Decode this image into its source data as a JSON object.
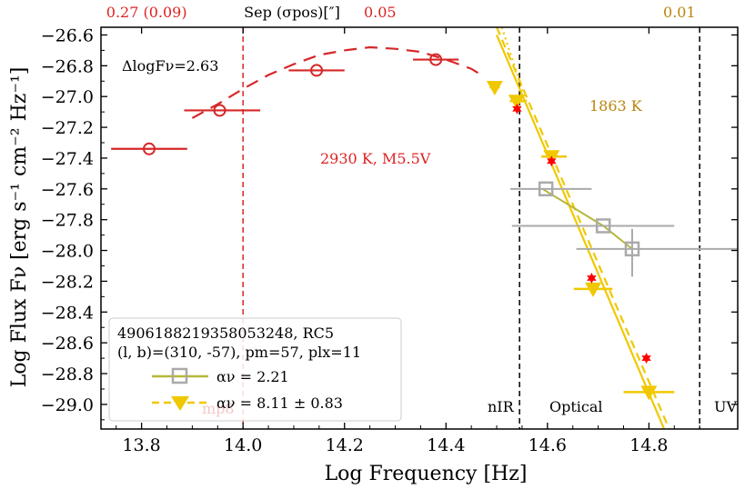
{
  "chart_data": {
    "type": "scatter",
    "xlabel": "Log Frequency [Hz]",
    "ylabel": "Log Flux Fν [erg s⁻¹ cm⁻² Hz⁻¹]",
    "xlim": [
      13.72,
      14.975
    ],
    "ylim": [
      -29.16,
      -26.55
    ],
    "xticks": [
      "13.8",
      "14.0",
      "14.2",
      "14.4",
      "14.6",
      "14.8"
    ],
    "yticks": [
      "-26.6",
      "-26.8",
      "-27.0",
      "-27.2",
      "-27.4",
      "-27.6",
      "-27.8",
      "-28.0",
      "-28.2",
      "-28.4",
      "-28.6",
      "-28.8",
      "-29.0"
    ],
    "top_axis": {
      "title": "Sep (σpos)[″]",
      "ticks": [
        {
          "x": 13.81,
          "label": "0.27 (0.09)",
          "color": "#dd2222"
        },
        {
          "x": 14.27,
          "label": "0.05",
          "color": "#dd2222"
        },
        {
          "x": 14.86,
          "label": "0.01",
          "color": "#b8860b"
        }
      ]
    },
    "photosphere_points": {
      "color": "#d62728",
      "points": [
        {
          "x": 13.815,
          "y": -27.34,
          "xerr": [
            0.075,
            0.075
          ]
        },
        {
          "x": 13.954,
          "y": -27.09,
          "xerr": [
            0.07,
            0.08
          ]
        },
        {
          "x": 14.145,
          "y": -26.83,
          "xerr": [
            0.055,
            0.055
          ]
        },
        {
          "x": 14.38,
          "y": -26.76,
          "xerr": [
            0.045,
            0.045
          ]
        }
      ]
    },
    "photosphere_model": {
      "label": "2930 K, M5.5V",
      "x": [
        13.9,
        13.95,
        14.0,
        14.05,
        14.1,
        14.15,
        14.2,
        14.25,
        14.3,
        14.35,
        14.4,
        14.45,
        14.47
      ],
      "y": [
        -27.14,
        -27.05,
        -26.95,
        -26.86,
        -26.79,
        -26.73,
        -26.7,
        -26.68,
        -26.69,
        -26.71,
        -26.76,
        -26.82,
        -26.86
      ]
    },
    "stellar_markers": {
      "color": "#ff0000",
      "points": [
        {
          "x": 14.54,
          "y": -27.08
        },
        {
          "x": 14.608,
          "y": -27.42
        },
        {
          "x": 14.687,
          "y": -28.18
        },
        {
          "x": 14.795,
          "y": -28.7
        }
      ]
    },
    "flare_points": {
      "color": "#f0c800",
      "points": [
        {
          "x": 14.496,
          "y": -26.94,
          "xerr": [
            0.01,
            0.01
          ]
        },
        {
          "x": 14.539,
          "y": -27.03,
          "xerr": [
            0.013,
            0.019
          ]
        },
        {
          "x": 14.608,
          "y": -27.39,
          "xerr": [
            0.02,
            0.03
          ]
        },
        {
          "x": 14.69,
          "y": -28.25,
          "xerr": [
            0.038,
            0.038
          ]
        },
        {
          "x": 14.8,
          "y": -28.92,
          "xerr": [
            0.05,
            0.05
          ]
        }
      ]
    },
    "flare_fit_lines": [
      {
        "style": "solid",
        "x": [
          14.5,
          14.83
        ],
        "y": [
          -26.6,
          -29.16
        ]
      },
      {
        "style": "dashed",
        "x": [
          14.5,
          14.84
        ],
        "y": [
          -26.55,
          -29.16
        ]
      },
      {
        "style": "dotted",
        "x": [
          14.51,
          14.56
        ],
        "y": [
          -26.55,
          -27.05
        ]
      }
    ],
    "comparison_points": {
      "color": "#aaaaaa",
      "points": [
        {
          "x": 14.597,
          "y": -27.6,
          "xerr": [
            0.07,
            0.09
          ],
          "yerr": [
            0.0,
            0.0
          ]
        },
        {
          "x": 14.71,
          "y": -27.84,
          "xerr": [
            0.18,
            0.14
          ],
          "yerr": [
            0.0,
            0.0
          ]
        },
        {
          "x": 14.767,
          "y": -27.99,
          "xerr": [
            0.11,
            0.21
          ],
          "yerr": [
            0.18,
            0.13
          ]
        }
      ]
    },
    "comparison_line": {
      "color": "#b5b83a",
      "x": [
        14.59,
        14.71,
        14.767
      ],
      "y": [
        -27.6,
        -27.84,
        -27.99
      ]
    },
    "vlines": [
      {
        "x": 14.0,
        "style": "dashed",
        "color": "#d62728"
      },
      {
        "x": 14.545,
        "style": "dashed",
        "color": "#000000"
      },
      {
        "x": 14.9,
        "style": "dashed",
        "color": "#000000"
      }
    ],
    "bands": [
      {
        "label": "nIR",
        "x": 14.52
      },
      {
        "label": "Optical",
        "x": 14.675
      },
      {
        "label": "UV",
        "x": 14.935
      }
    ],
    "annotations": {
      "delta": "ΔlogFν=2.63",
      "temp_flare": "1863 K",
      "faint_label": "mp8"
    },
    "legend": {
      "title_line1": "4906188219358053248, RC5",
      "title_line2": "(l, b)=(310, -57), pm=57, plx=11",
      "entries": [
        {
          "label": "αν = 2.21",
          "color": "#b5b83a"
        },
        {
          "label": "αν = 8.11 ± 0.83",
          "color": "#f0c800"
        }
      ]
    }
  }
}
